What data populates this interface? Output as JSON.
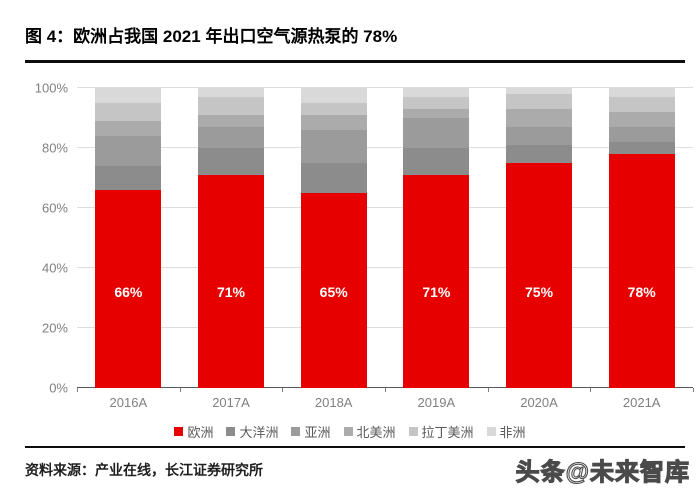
{
  "header": {
    "title": "图 4：欧洲占我国 2021 年出口空气源热泵的 78%"
  },
  "footer": {
    "source": "资料来源：产业在线，长江证券研究所",
    "watermark": "头条@未来智库"
  },
  "colors": {
    "accent_red": "#e60000",
    "rule": "#0d0d0d",
    "grid": "#dcdcdc",
    "axis_text": "#808080",
    "legend_text": "#595959",
    "bar_label_text": "#ffffff"
  },
  "chart_data": {
    "type": "bar",
    "stacked": true,
    "title": "图 4：欧洲占我国 2021 年出口空气源热泵的 78%",
    "xlabel": "",
    "ylabel": "",
    "ylim": [
      0,
      100
    ],
    "grid": true,
    "legend_position": "bottom",
    "categories": [
      "2016A",
      "2017A",
      "2018A",
      "2019A",
      "2020A",
      "2021A"
    ],
    "yticks": [
      "0%",
      "20%",
      "40%",
      "60%",
      "80%",
      "100%"
    ],
    "series": [
      {
        "name": "欧洲",
        "color": "#e60000",
        "values": [
          66,
          71,
          65,
          71,
          75,
          78
        ]
      },
      {
        "name": "大洋洲",
        "color": "#8c8c8c",
        "values": [
          8,
          9,
          10,
          9,
          6,
          4
        ]
      },
      {
        "name": "亚洲",
        "color": "#9b9b9b",
        "values": [
          10,
          7,
          11,
          10,
          6,
          5
        ]
      },
      {
        "name": "北美洲",
        "color": "#ababab",
        "values": [
          5,
          4,
          5,
          3,
          6,
          5
        ]
      },
      {
        "name": "拉丁美洲",
        "color": "#c5c5c5",
        "values": [
          6,
          6,
          4,
          4,
          5,
          5
        ]
      },
      {
        "name": "非洲",
        "color": "#d9d9d9",
        "values": [
          5,
          3,
          5,
          3,
          2,
          3
        ]
      }
    ],
    "bar_labels": [
      "66%",
      "71%",
      "65%",
      "71%",
      "75%",
      "78%"
    ]
  }
}
